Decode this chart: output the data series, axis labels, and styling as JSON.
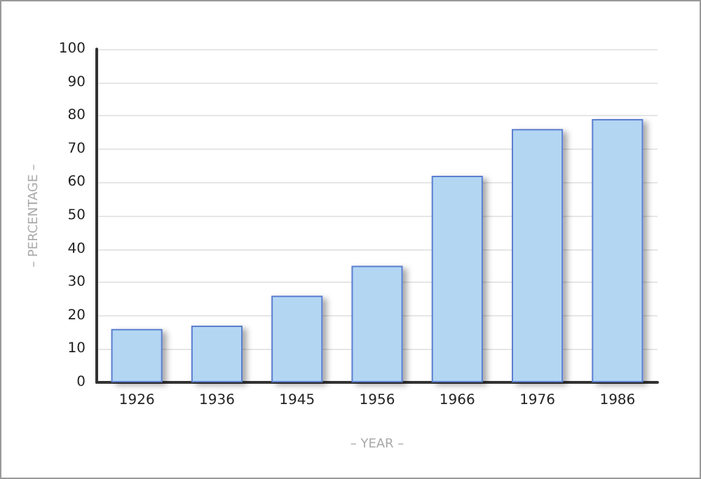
{
  "chart_data": {
    "type": "bar",
    "xlabel": "– YEAR –",
    "ylabel": "– PERCENTAGE –",
    "categories": [
      "1926",
      "1936",
      "1945",
      "1956",
      "1966",
      "1976",
      "1986"
    ],
    "values": [
      16,
      17,
      26,
      35,
      62,
      76,
      79
    ],
    "color": "#b3d6f3",
    "ylim": [
      0,
      100
    ],
    "yticks": [
      0,
      10,
      20,
      30,
      40,
      50,
      60,
      70,
      80,
      90,
      100
    ],
    "grid": "y"
  }
}
